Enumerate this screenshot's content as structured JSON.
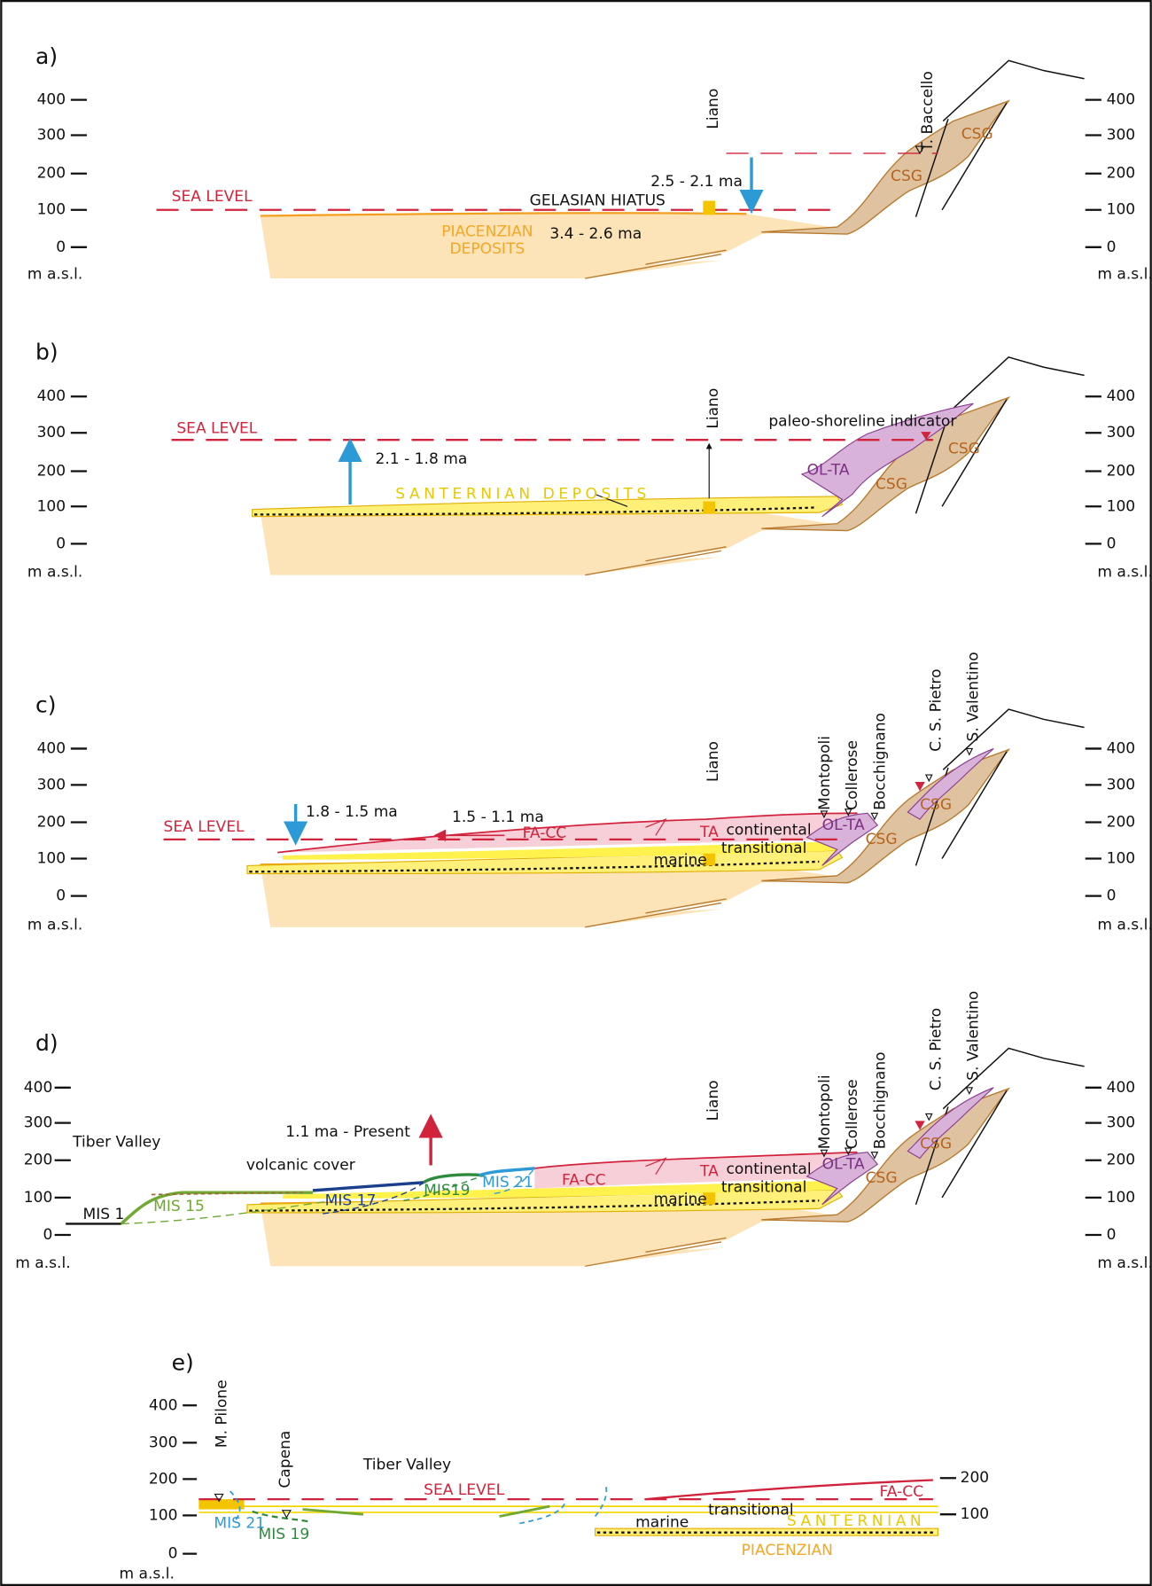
{
  "panels": [
    {
      "label": "a)",
      "ticks": [
        "400",
        "300",
        "200",
        "100",
        "0"
      ],
      "unit": "m a.s.l.",
      "texts": [
        "SEA LEVEL",
        "GELASIAN HIATUS",
        "2.5 - 2.1   ma",
        "Liano",
        "T. Baccello",
        "CSG",
        "CSG",
        "PIACENZIAN",
        "DEPOSITS",
        "3.4 - 2.6 ma"
      ]
    },
    {
      "label": "b)",
      "ticks": [
        "400",
        "300",
        "200",
        "100",
        "0"
      ],
      "unit": "m a.s.l.",
      "texts": [
        "SEA LEVEL",
        "2.1 - 1.8   ma",
        "SANTERNIAN DEPOSITS",
        "Liano",
        "paleo-shoreline indicator",
        "OL-TA",
        "CSG",
        "CSG"
      ]
    },
    {
      "label": "c)",
      "ticks": [
        "400",
        "300",
        "200",
        "100",
        "0"
      ],
      "unit": "m a.s.l.",
      "texts": [
        "SEA LEVEL",
        "1.8 - 1.5 ma",
        "1.5 - 1.1 ma",
        "FA-CC",
        "TA",
        "continental",
        "OL-TA",
        "transitional",
        "marine",
        "CSG",
        "CSG",
        "Liano",
        "Montopoli",
        "Collerose",
        "Bocchignano",
        "C. S. Pietro",
        "S. Valentino"
      ]
    },
    {
      "label": "d)",
      "ticks": [
        "400",
        "300",
        "200",
        "100",
        "0"
      ],
      "unit": "m a.s.l.",
      "texts": [
        "Tiber Valley",
        "1.1 ma - Present",
        "volcanic cover",
        "MIS 1",
        "MIS 15",
        "MIS 17",
        "MIS19",
        "MIS 21",
        "FA-CC",
        "TA",
        "continental",
        "OL-TA",
        "transitional",
        "marine",
        "CSG",
        "CSG",
        "Liano",
        "Montopoli",
        "Collerose",
        "Bocchignano",
        "C. S. Pietro",
        "S. Valentino"
      ]
    },
    {
      "label": "e)",
      "ticks": [
        "400",
        "300",
        "200",
        "100",
        "0"
      ],
      "unit": "m a.s.l.",
      "texts": [
        "M. Pilone",
        "Capena",
        "Tiber Valley",
        "SEA LEVEL",
        "FA-CC",
        "transitional",
        "marine",
        "SANTERNIAN",
        "PIACENZIAN",
        "MIS 21",
        "MIS 19"
      ]
    }
  ]
}
